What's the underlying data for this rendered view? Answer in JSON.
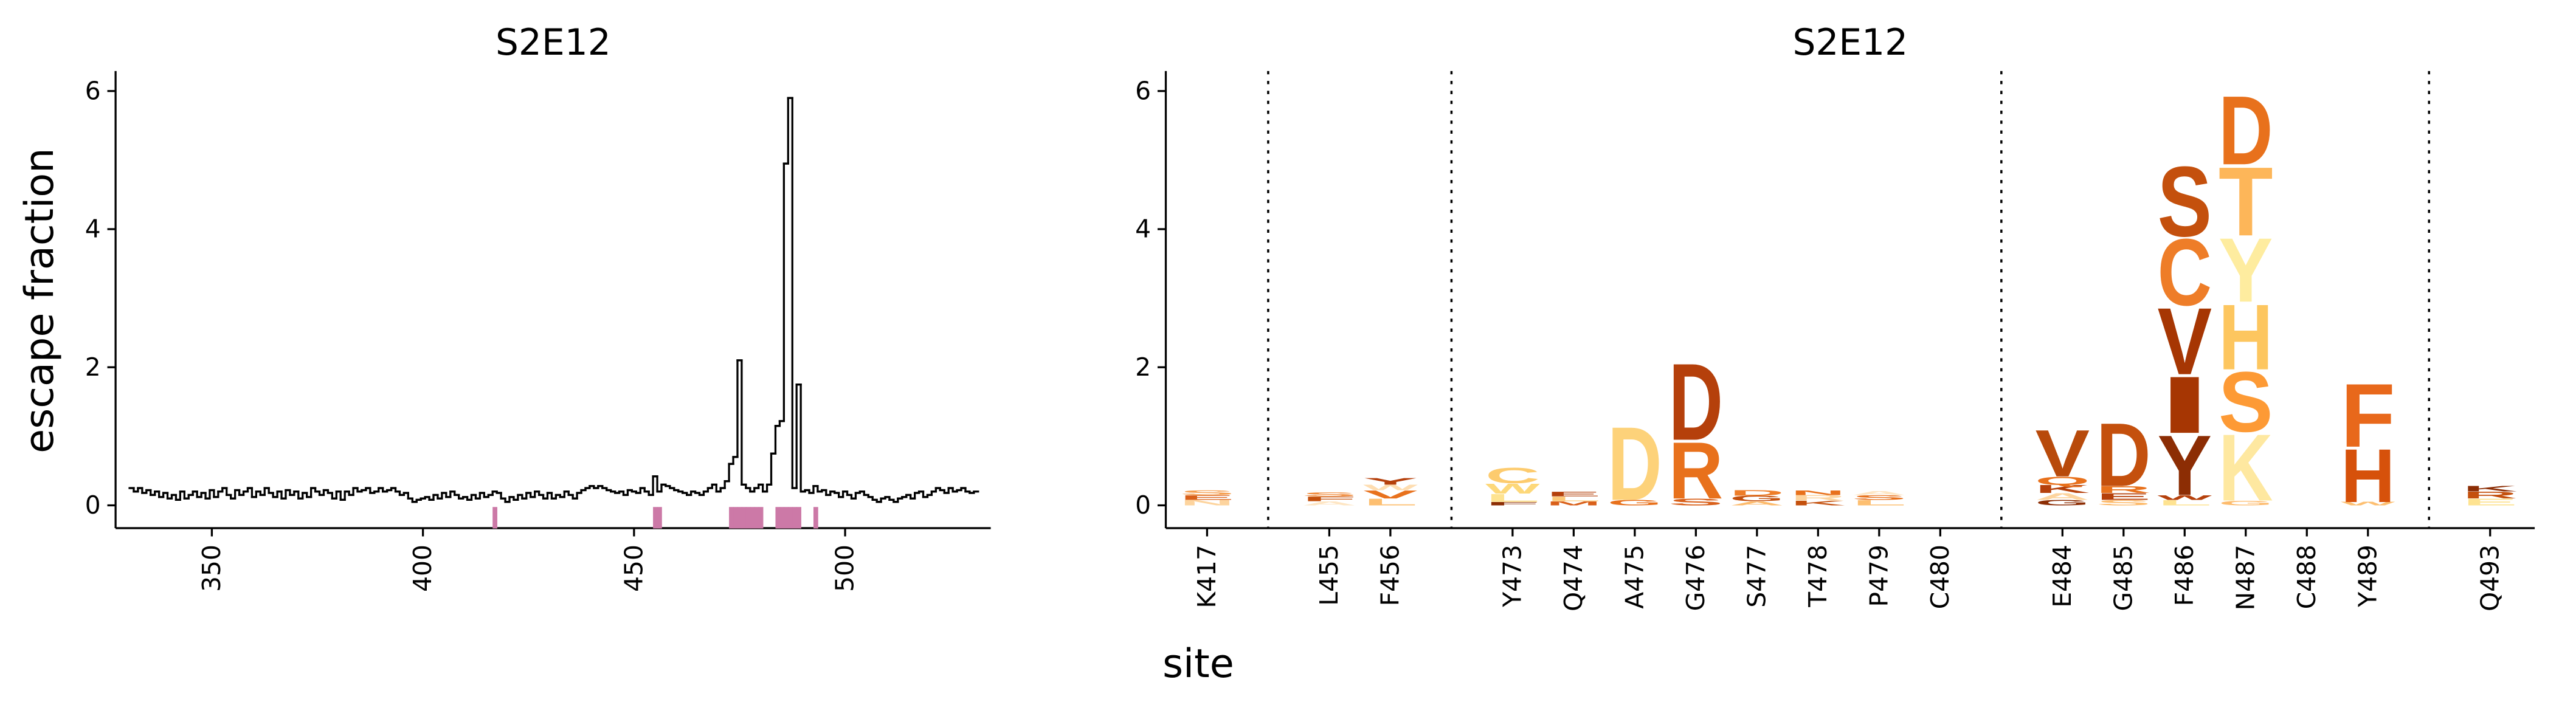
{
  "chart_data": [
    {
      "type": "line",
      "title": "S2E12",
      "ylabel": "escape fraction",
      "drawstyle": "steps-mid",
      "color": "#000000",
      "xlim": [
        327.2,
        534.5
      ],
      "xticks": [
        350,
        400,
        450,
        500
      ],
      "ylim": [
        -0.33,
        6.29
      ],
      "yticks": [
        0,
        2,
        4,
        6
      ],
      "highlight_color": "#cc79a7",
      "highlight_sites": [
        417,
        455,
        456,
        473,
        474,
        475,
        476,
        477,
        478,
        479,
        480,
        484,
        485,
        486,
        487,
        488,
        489,
        493
      ],
      "x": [
        331,
        332,
        333,
        334,
        335,
        336,
        337,
        338,
        339,
        340,
        341,
        342,
        343,
        344,
        345,
        346,
        347,
        348,
        349,
        350,
        351,
        352,
        353,
        354,
        355,
        356,
        357,
        358,
        359,
        360,
        361,
        362,
        363,
        364,
        365,
        366,
        367,
        368,
        369,
        370,
        371,
        372,
        373,
        374,
        375,
        376,
        377,
        378,
        379,
        380,
        381,
        382,
        383,
        384,
        385,
        386,
        387,
        388,
        389,
        390,
        391,
        392,
        393,
        394,
        395,
        396,
        397,
        398,
        399,
        400,
        401,
        402,
        403,
        404,
        405,
        406,
        407,
        408,
        409,
        410,
        411,
        412,
        413,
        414,
        415,
        416,
        417,
        418,
        419,
        420,
        421,
        422,
        423,
        424,
        425,
        426,
        427,
        428,
        429,
        430,
        431,
        432,
        433,
        434,
        435,
        436,
        437,
        438,
        439,
        440,
        441,
        442,
        443,
        444,
        445,
        446,
        447,
        448,
        449,
        450,
        451,
        452,
        453,
        454,
        455,
        456,
        457,
        458,
        459,
        460,
        461,
        462,
        463,
        464,
        465,
        466,
        467,
        468,
        469,
        470,
        471,
        472,
        473,
        474,
        475,
        476,
        477,
        478,
        479,
        480,
        481,
        482,
        483,
        484,
        485,
        486,
        487,
        488,
        489,
        490,
        491,
        492,
        493,
        494,
        495,
        496,
        497,
        498,
        499,
        500,
        501,
        502,
        503,
        504,
        505,
        506,
        507,
        508,
        509,
        510,
        511,
        512,
        513,
        514,
        515,
        516,
        517,
        518,
        519,
        520,
        521,
        522,
        523,
        524,
        525,
        526,
        527,
        528,
        529,
        530,
        531
      ],
      "values": [
        0.25,
        0.2,
        0.25,
        0.18,
        0.22,
        0.15,
        0.2,
        0.12,
        0.18,
        0.1,
        0.15,
        0.08,
        0.2,
        0.1,
        0.15,
        0.2,
        0.12,
        0.18,
        0.1,
        0.22,
        0.12,
        0.2,
        0.25,
        0.15,
        0.1,
        0.22,
        0.15,
        0.2,
        0.25,
        0.12,
        0.2,
        0.15,
        0.25,
        0.18,
        0.12,
        0.2,
        0.1,
        0.22,
        0.15,
        0.2,
        0.1,
        0.18,
        0.12,
        0.25,
        0.2,
        0.15,
        0.22,
        0.18,
        0.1,
        0.2,
        0.08,
        0.2,
        0.15,
        0.25,
        0.2,
        0.22,
        0.25,
        0.18,
        0.2,
        0.25,
        0.2,
        0.22,
        0.25,
        0.2,
        0.15,
        0.18,
        0.1,
        0.05,
        0.08,
        0.1,
        0.12,
        0.08,
        0.15,
        0.1,
        0.18,
        0.12,
        0.2,
        0.15,
        0.1,
        0.12,
        0.08,
        0.15,
        0.1,
        0.18,
        0.12,
        0.15,
        0.2,
        0.18,
        0.1,
        0.05,
        0.12,
        0.08,
        0.15,
        0.1,
        0.18,
        0.12,
        0.2,
        0.15,
        0.1,
        0.18,
        0.1,
        0.15,
        0.12,
        0.2,
        0.15,
        0.1,
        0.18,
        0.22,
        0.25,
        0.28,
        0.25,
        0.28,
        0.25,
        0.22,
        0.2,
        0.18,
        0.2,
        0.15,
        0.22,
        0.2,
        0.18,
        0.25,
        0.2,
        0.15,
        0.42,
        0.2,
        0.3,
        0.28,
        0.25,
        0.22,
        0.2,
        0.18,
        0.15,
        0.2,
        0.18,
        0.15,
        0.2,
        0.25,
        0.3,
        0.2,
        0.25,
        0.35,
        0.6,
        0.7,
        2.1,
        0.3,
        0.25,
        0.2,
        0.25,
        0.3,
        0.2,
        0.3,
        0.75,
        1.15,
        1.22,
        4.95,
        5.9,
        0.25,
        1.75,
        0.2,
        0.22,
        0.18,
        0.28,
        0.2,
        0.22,
        0.15,
        0.2,
        0.18,
        0.12,
        0.2,
        0.15,
        0.1,
        0.18,
        0.2,
        0.15,
        0.12,
        0.08,
        0.05,
        0.1,
        0.12,
        0.08,
        0.05,
        0.1,
        0.12,
        0.15,
        0.1,
        0.18,
        0.2,
        0.12,
        0.15,
        0.2,
        0.25,
        0.22,
        0.18,
        0.25,
        0.2,
        0.22,
        0.25,
        0.2,
        0.18,
        0.2
      ]
    },
    {
      "type": "logo",
      "title": "S2E12",
      "xlabel": "site",
      "ylim": [
        -0.33,
        6.29
      ],
      "yticks": [
        0,
        2,
        4,
        6
      ],
      "categories": [
        "K417",
        "L455",
        "F456",
        "Y473",
        "Q474",
        "A475",
        "G476",
        "S477",
        "T478",
        "P479",
        "C480",
        "E484",
        "G485",
        "F486",
        "N487",
        "C488",
        "Y489",
        "Q493"
      ],
      "stacks": [
        [
          {
            "letter": "N",
            "value": 0.08,
            "color": "#fdd49e"
          },
          {
            "letter": "E",
            "value": 0.07,
            "color": "#d9601a"
          },
          {
            "letter": "S",
            "value": 0.07,
            "color": "#f59d4d"
          }
        ],
        [
          {
            "letter": "A",
            "value": 0.06,
            "color": "#fee6c4"
          },
          {
            "letter": "F",
            "value": 0.07,
            "color": "#c4500d"
          },
          {
            "letter": "S",
            "value": 0.06,
            "color": "#f08a3a"
          }
        ],
        [
          {
            "letter": "L",
            "value": 0.1,
            "color": "#fdbf71"
          },
          {
            "letter": "V",
            "value": 0.12,
            "color": "#e8711c"
          },
          {
            "letter": "W",
            "value": 0.08,
            "color": "#feddb0"
          },
          {
            "letter": "Y",
            "value": 0.1,
            "color": "#b5400b"
          }
        ],
        [
          {
            "letter": "F",
            "value": 0.05,
            "color": "#8c2d04"
          },
          {
            "letter": "L",
            "value": 0.12,
            "color": "#fee391"
          },
          {
            "letter": "W",
            "value": 0.15,
            "color": "#fdd87a"
          },
          {
            "letter": "C",
            "value": 0.23,
            "color": "#fdcb6e"
          }
        ],
        [
          {
            "letter": "M",
            "value": 0.06,
            "color": "#d9601a"
          },
          {
            "letter": "L",
            "value": 0.07,
            "color": "#fdc978"
          },
          {
            "letter": "E",
            "value": 0.07,
            "color": "#b5400b"
          }
        ],
        [
          {
            "letter": "G",
            "value": 0.08,
            "color": "#e8711c"
          },
          {
            "letter": "D",
            "value": 1.1,
            "color": "#fdd27a"
          }
        ],
        [
          {
            "letter": "S",
            "value": 0.1,
            "color": "#d9601a"
          },
          {
            "letter": "R",
            "value": 0.85,
            "color": "#e8711c"
          },
          {
            "letter": "D",
            "value": 1.15,
            "color": "#b5400b"
          }
        ],
        [
          {
            "letter": "A",
            "value": 0.06,
            "color": "#fdbb6c"
          },
          {
            "letter": "G",
            "value": 0.08,
            "color": "#c4500d"
          },
          {
            "letter": "D",
            "value": 0.08,
            "color": "#ee7d28"
          }
        ],
        [
          {
            "letter": "K",
            "value": 0.07,
            "color": "#c4500d"
          },
          {
            "letter": "R",
            "value": 0.08,
            "color": "#fdd49e"
          },
          {
            "letter": "N",
            "value": 0.07,
            "color": "#e8711c"
          }
        ],
        [
          {
            "letter": "L",
            "value": 0.08,
            "color": "#fdbf71"
          },
          {
            "letter": "S",
            "value": 0.07,
            "color": "#e8711c"
          },
          {
            "letter": "A",
            "value": 0.06,
            "color": "#fee6c4"
          }
        ],
        [],
        [
          {
            "letter": "G",
            "value": 0.08,
            "color": "#8c2d04"
          },
          {
            "letter": "A",
            "value": 0.1,
            "color": "#fdd49e"
          },
          {
            "letter": "K",
            "value": 0.12,
            "color": "#b5400b"
          },
          {
            "letter": "Q",
            "value": 0.12,
            "color": "#e8711c"
          },
          {
            "letter": "V",
            "value": 0.7,
            "color": "#b84a0b"
          }
        ],
        [
          {
            "letter": "S",
            "value": 0.08,
            "color": "#fdbb6c"
          },
          {
            "letter": "E",
            "value": 0.1,
            "color": "#b5400b"
          },
          {
            "letter": "R",
            "value": 0.1,
            "color": "#e8711c"
          },
          {
            "letter": "D",
            "value": 0.95,
            "color": "#c4500d"
          }
        ],
        [
          {
            "letter": "L",
            "value": 0.08,
            "color": "#fee391"
          },
          {
            "letter": "W",
            "value": 0.07,
            "color": "#b5400b"
          },
          {
            "letter": "Y",
            "value": 0.9,
            "color": "#8c2d04"
          },
          {
            "letter": "I",
            "value": 0.85,
            "color": "#a63603"
          },
          {
            "letter": "V",
            "value": 1.0,
            "color": "#a63603"
          },
          {
            "letter": "C",
            "value": 1.0,
            "color": "#ee7d28"
          },
          {
            "letter": "S",
            "value": 1.05,
            "color": "#c4500d"
          }
        ],
        [
          {
            "letter": "G",
            "value": 0.07,
            "color": "#fdbb6c"
          },
          {
            "letter": "K",
            "value": 1.0,
            "color": "#fee8a0"
          },
          {
            "letter": "S",
            "value": 0.9,
            "color": "#fd9a35"
          },
          {
            "letter": "H",
            "value": 0.98,
            "color": "#fdc65f"
          },
          {
            "letter": "Y",
            "value": 0.96,
            "color": "#feec9f"
          },
          {
            "letter": "T",
            "value": 1.03,
            "color": "#fdb659"
          },
          {
            "letter": "D",
            "value": 1.03,
            "color": "#e8711c"
          }
        ],
        [],
        [
          {
            "letter": "W",
            "value": 0.05,
            "color": "#fdbf71"
          },
          {
            "letter": "H",
            "value": 0.8,
            "color": "#d6510b"
          },
          {
            "letter": "F",
            "value": 0.95,
            "color": "#e8681b"
          }
        ],
        [
          {
            "letter": "E",
            "value": 0.1,
            "color": "#fee391"
          },
          {
            "letter": "R",
            "value": 0.1,
            "color": "#c4500d"
          },
          {
            "letter": "K",
            "value": 0.08,
            "color": "#8c2d04"
          }
        ]
      ]
    }
  ]
}
